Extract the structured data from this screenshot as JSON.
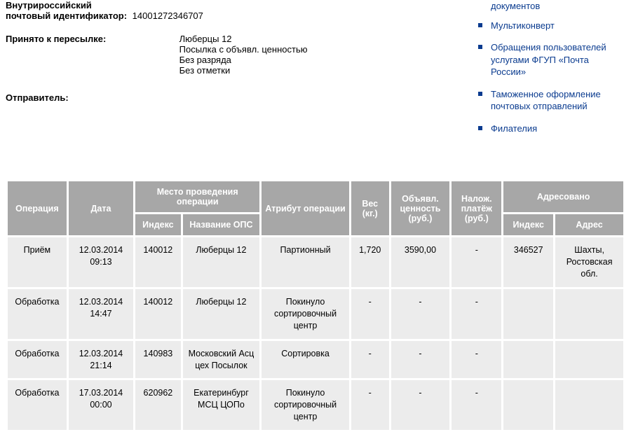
{
  "info": {
    "id_label": "Внутрироссийский\nпочтовый идентификатор:",
    "id_value": "14001272346707",
    "accepted_label": "Принято к пересылке:",
    "accepted_lines": [
      "Люберцы 12",
      "Посылка с объявл. ценностью",
      "Без разряда",
      "Без отметки"
    ],
    "sender_label": "Отправитель:"
  },
  "sidebar": {
    "items": [
      {
        "label": "документов"
      },
      {
        "label": "Мультиконверт"
      },
      {
        "label": "Обращения пользователей услугами ФГУП «Почта России»"
      },
      {
        "label": "Таможенное оформление почтовых отправлений"
      },
      {
        "label": "Филателия"
      }
    ]
  },
  "table": {
    "headers": {
      "operation": "Операция",
      "date": "Дата",
      "place_group": "Место проведения операции",
      "place_index": "Индекс",
      "place_name": "Название ОПС",
      "attr": "Атрибут операции",
      "weight": "Вес (кг.)",
      "declared": "Объявл. ценность (руб.)",
      "cod": "Налож. платёж (руб.)",
      "addressed_group": "Адресовано",
      "addr_index": "Индекс",
      "addr_addr": "Адрес"
    },
    "rows": [
      {
        "op": "Приём",
        "date": "12.03.2014 09:13",
        "idx": "140012",
        "ops": "Люберцы 12",
        "attr": "Партионный",
        "weight": "1,720",
        "declared": "3590,00",
        "cod": "-",
        "aidx": "346527",
        "addr": "Шахты, Ростовская обл."
      },
      {
        "op": "Обработка",
        "date": "12.03.2014 14:47",
        "idx": "140012",
        "ops": "Люберцы 12",
        "attr": "Покинуло сортировочный центр",
        "weight": "-",
        "declared": "-",
        "cod": "-",
        "aidx": "",
        "addr": ""
      },
      {
        "op": "Обработка",
        "date": "12.03.2014 21:14",
        "idx": "140983",
        "ops": "Московский Асц цех Посылок",
        "attr": "Сортировка",
        "weight": "-",
        "declared": "-",
        "cod": "-",
        "aidx": "",
        "addr": ""
      },
      {
        "op": "Обработка",
        "date": "17.03.2014 00:00",
        "idx": "620962",
        "ops": "Екатеринбург МСЦ ЦОПо",
        "attr": "Покинуло сортировочный центр",
        "weight": "-",
        "declared": "-",
        "cod": "-",
        "aidx": "",
        "addr": ""
      }
    ]
  }
}
